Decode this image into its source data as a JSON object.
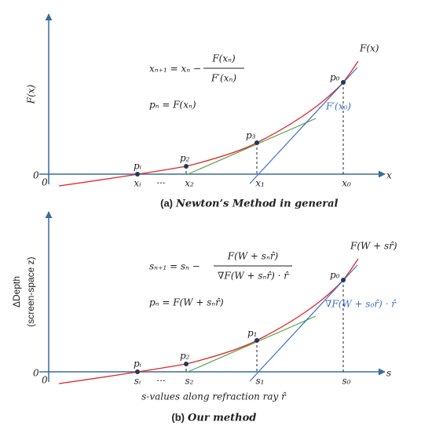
{
  "panel_a": {
    "y_axis_label": "F(x)",
    "x_axis_label": "x",
    "origin_y": "0",
    "origin_x": "0",
    "equation": {
      "lhs": "xₙ₊₁ = xₙ −",
      "numerator": "F(xₙ)",
      "denominator": "F′(xₙ)"
    },
    "point_equation": "pₙ = F(xₙ)",
    "points": [
      "pᵢ",
      "p₂",
      "p₃",
      "p₀"
    ],
    "x_labels": [
      "xᵢ",
      "···",
      "x₂",
      "x₁",
      "x₀"
    ],
    "curve_label": "F(x)",
    "tangent_label": "F′(x₀)",
    "caption_label": "(a)",
    "caption_text": "Newton’s Method in general"
  },
  "panel_b": {
    "y_axis_label": [
      "ΔDepth",
      "(screen-space z)"
    ],
    "x_axis_label": "s",
    "origin_y": "0",
    "origin_x": "0",
    "equation": {
      "lhs": "sₙ₊₁ = sₙ −",
      "numerator": "F(W + sₙr̂)",
      "denominator": "∇F(W + sₙr̂) · r̂"
    },
    "point_equation": "pₙ = F(W + sₙr̂)",
    "points": [
      "pᵢ",
      "p₂",
      "p₁",
      "p₀"
    ],
    "x_labels": [
      "sᵢ",
      "···",
      "s₂",
      "s₁",
      "s₀"
    ],
    "curve_label": "F(W + sr̂)",
    "tangent_label": "∇F(W + s₀r̂) · r̂",
    "x_description": "s-values along refraction ray r̂",
    "caption_label": "(b)",
    "caption_text": "Our method"
  }
}
